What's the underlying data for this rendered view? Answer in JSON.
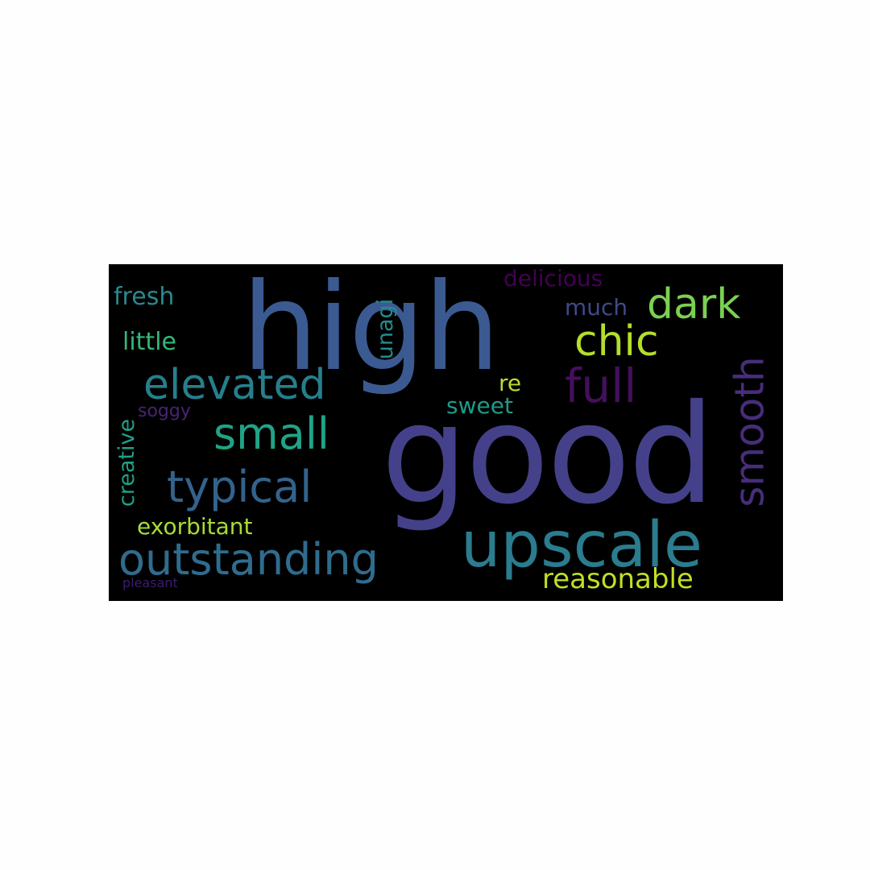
{
  "word_cloud": {
    "background": "#000000",
    "words": [
      {
        "id": "high",
        "text": "high",
        "color": "#3b5a92"
      },
      {
        "id": "good",
        "text": "good",
        "color": "#44418a"
      },
      {
        "id": "upscale",
        "text": "upscale",
        "color": "#2a7c8e"
      },
      {
        "id": "outstanding",
        "text": "outstanding",
        "color": "#2f6c8e"
      },
      {
        "id": "elevated",
        "text": "elevated",
        "color": "#267f8d"
      },
      {
        "id": "typical",
        "text": "typical",
        "color": "#33638d"
      },
      {
        "id": "small",
        "text": "small",
        "color": "#20a386"
      },
      {
        "id": "chic",
        "text": "chic",
        "color": "#b4de2c"
      },
      {
        "id": "dark",
        "text": "dark",
        "color": "#7ad151"
      },
      {
        "id": "full",
        "text": "full",
        "color": "#440f5e"
      },
      {
        "id": "smooth",
        "text": "smooth",
        "color": "#472d7b"
      },
      {
        "id": "reasonable",
        "text": "reasonable",
        "color": "#c2df23"
      },
      {
        "id": "exorbitant",
        "text": "exorbitant",
        "color": "#a8db34"
      },
      {
        "id": "fresh",
        "text": "fresh",
        "color": "#29898e"
      },
      {
        "id": "little",
        "text": "little",
        "color": "#35b779"
      },
      {
        "id": "delicious",
        "text": "delicious",
        "color": "#440154"
      },
      {
        "id": "much",
        "text": "much",
        "color": "#3e4a89"
      },
      {
        "id": "unagi",
        "text": "unagi",
        "color": "#228c8d"
      },
      {
        "id": "re",
        "text": "re",
        "color": "#b8de29"
      },
      {
        "id": "sweet",
        "text": "sweet",
        "color": "#1f9a8a"
      },
      {
        "id": "soggy",
        "text": "soggy",
        "color": "#482475"
      },
      {
        "id": "creative",
        "text": "creative",
        "color": "#1fa187"
      },
      {
        "id": "pleasant",
        "text": "pleasant",
        "color": "#3b1c6e"
      }
    ]
  }
}
